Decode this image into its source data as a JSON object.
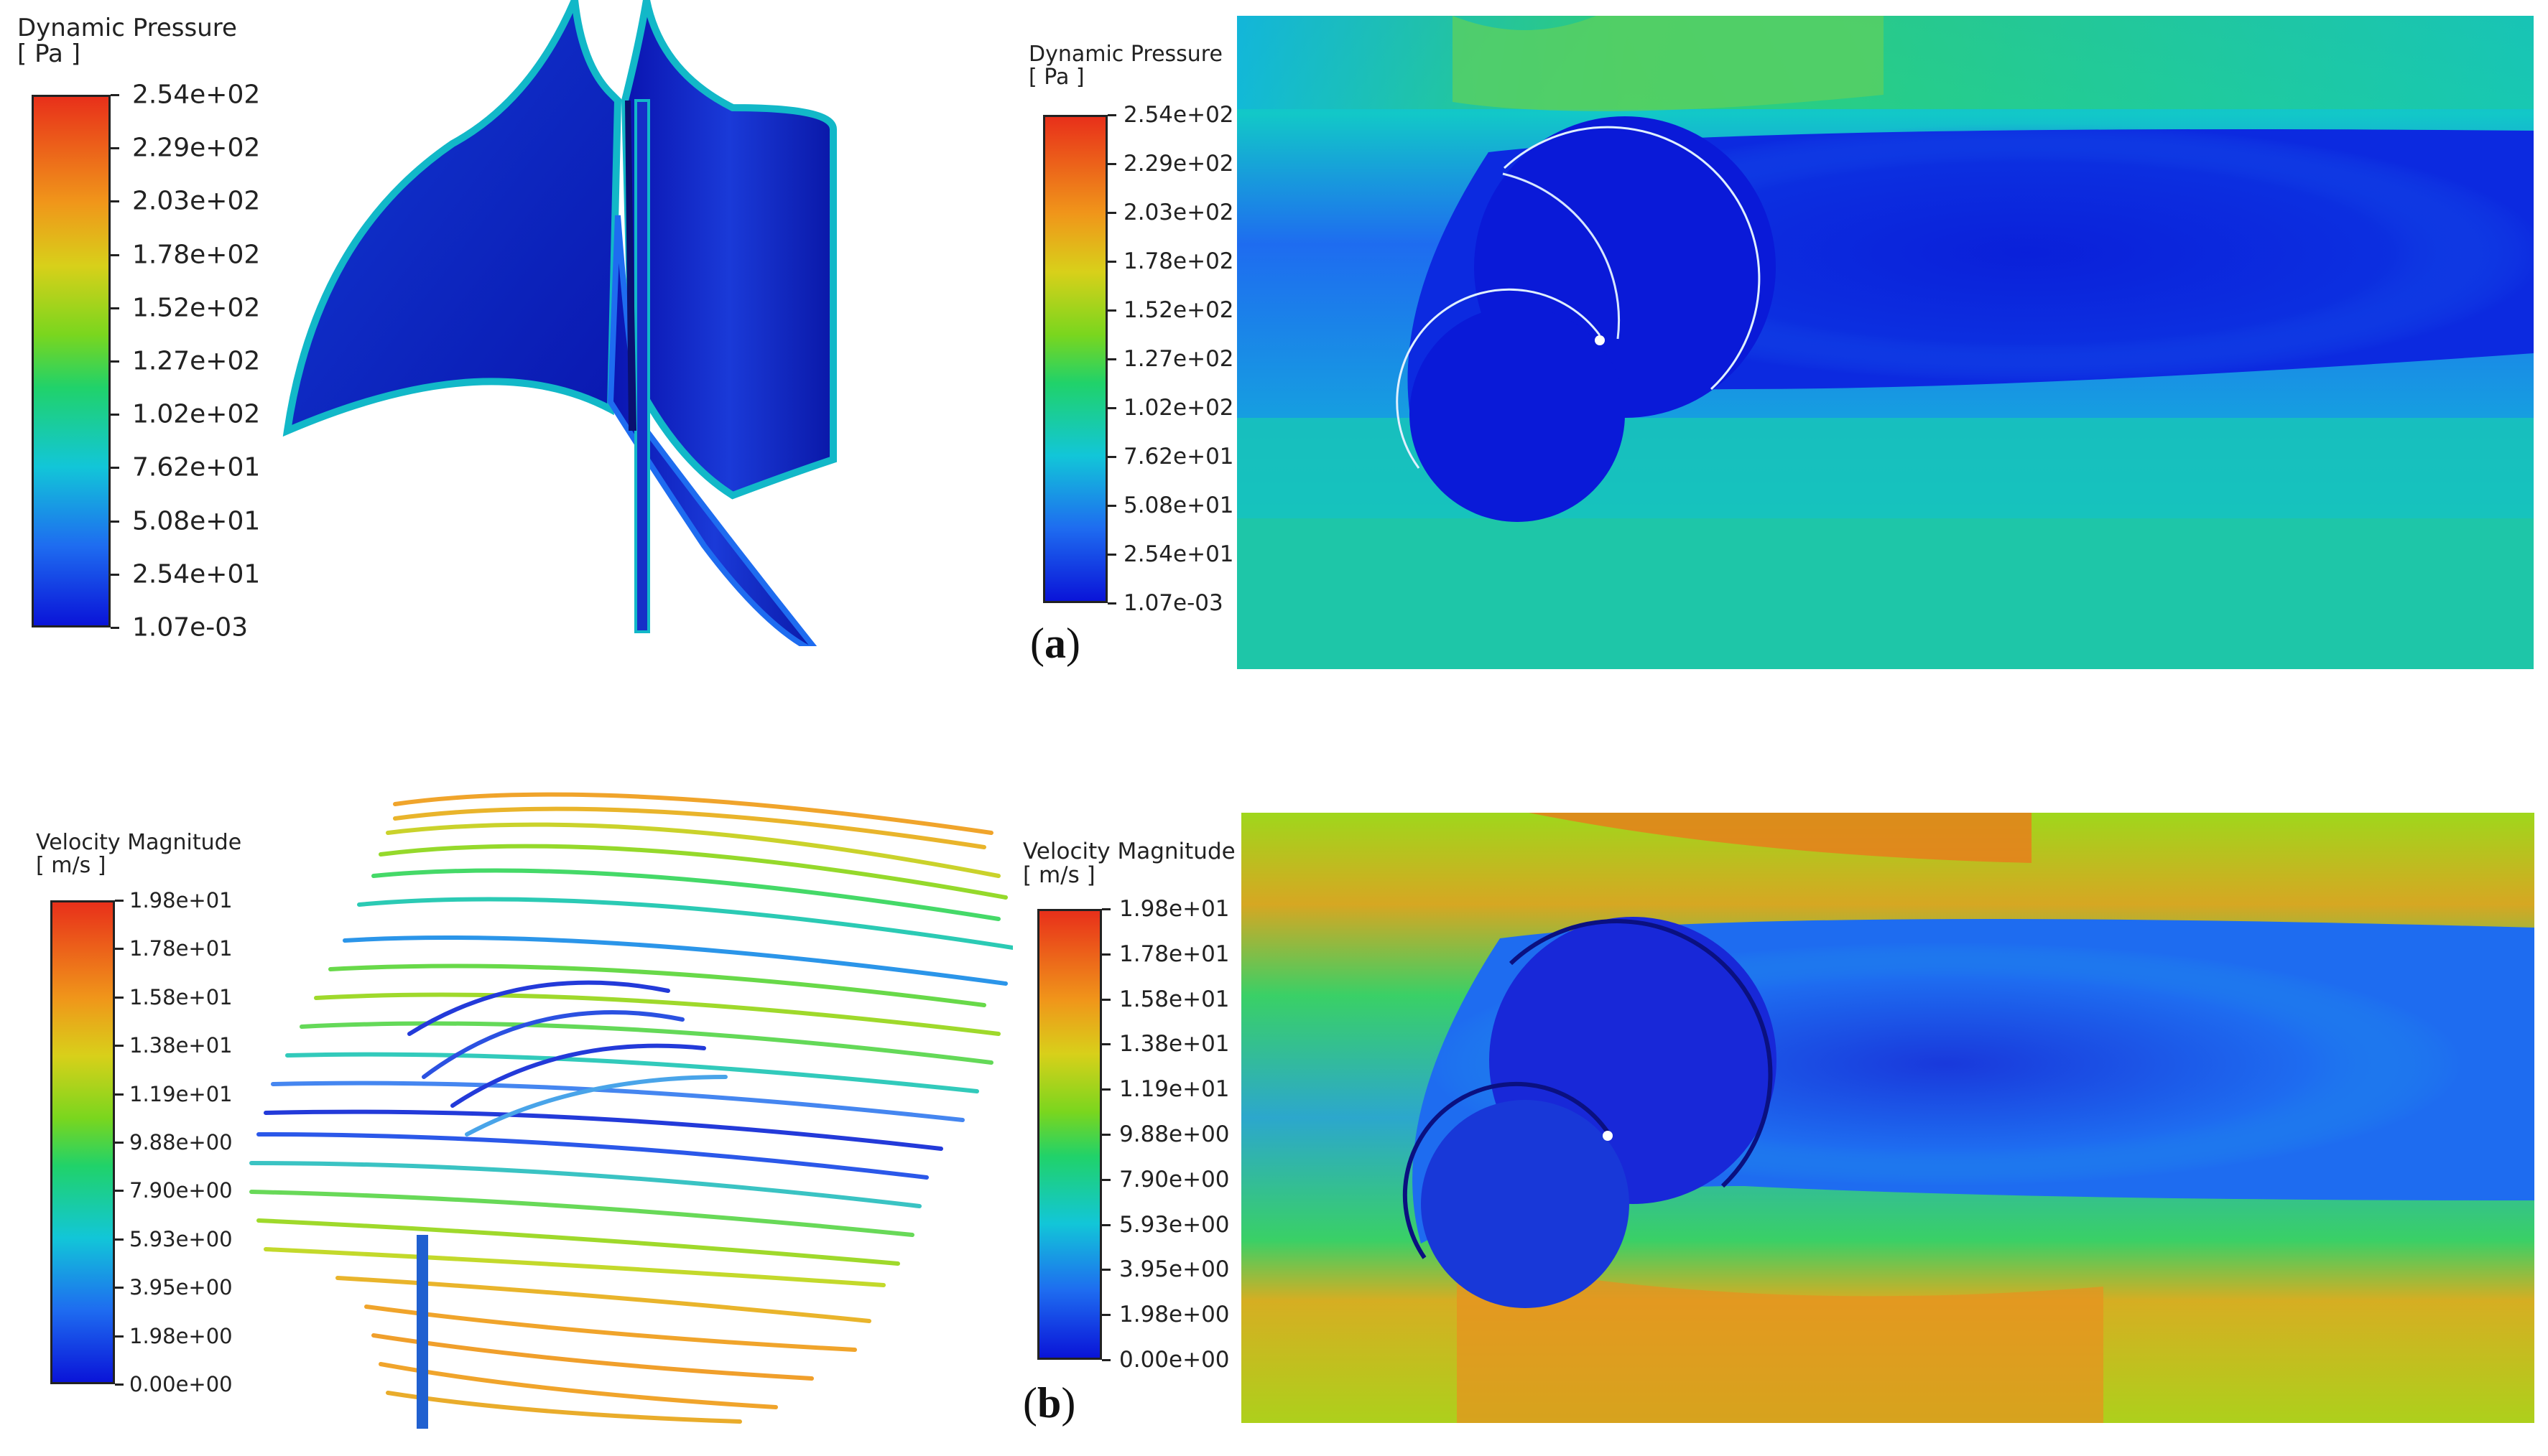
{
  "panels": {
    "a": {
      "label_open": "(",
      "label_letter": "a",
      "label_close": ")",
      "legend_3d": {
        "title_line1": "Dynamic Pressure",
        "title_line2": "[ Pa ]",
        "ticks": [
          "2.54e+02",
          "2.29e+02",
          "2.03e+02",
          "1.78e+02",
          "1.52e+02",
          "1.27e+02",
          "1.02e+02",
          "7.62e+01",
          "5.08e+01",
          "2.54e+01",
          "1.07e-03"
        ]
      },
      "legend_2d": {
        "title_line1": "Dynamic Pressure",
        "title_line2": "[ Pa ]",
        "ticks": [
          "2.54e+02",
          "2.29e+02",
          "2.03e+02",
          "1.78e+02",
          "1.52e+02",
          "1.27e+02",
          "1.02e+02",
          "7.62e+01",
          "5.08e+01",
          "2.54e+01",
          "1.07e-03"
        ]
      }
    },
    "b": {
      "label_open": "(",
      "label_letter": "b",
      "label_close": ")",
      "legend_3d": {
        "title_line1": "Velocity Magnitude",
        "title_line2": "[ m/s ]",
        "ticks": [
          "1.98e+01",
          "1.78e+01",
          "1.58e+01",
          "1.38e+01",
          "1.19e+01",
          "9.88e+00",
          "7.90e+00",
          "5.93e+00",
          "3.95e+00",
          "1.98e+00",
          "0.00e+00"
        ]
      },
      "legend_2d": {
        "title_line1": "Velocity Magnitude",
        "title_line2": "[ m/s ]",
        "ticks": [
          "1.98e+01",
          "1.78e+01",
          "1.58e+01",
          "1.38e+01",
          "1.19e+01",
          "9.88e+00",
          "7.90e+00",
          "5.93e+00",
          "3.95e+00",
          "1.98e+00",
          "0.00e+00"
        ]
      }
    }
  },
  "colors": {
    "colormap": [
      "#0a14d8",
      "#1e6cf0",
      "#12c6d8",
      "#20d26a",
      "#7ad61e",
      "#d8d01a",
      "#f0961a",
      "#e8301a"
    ]
  }
}
